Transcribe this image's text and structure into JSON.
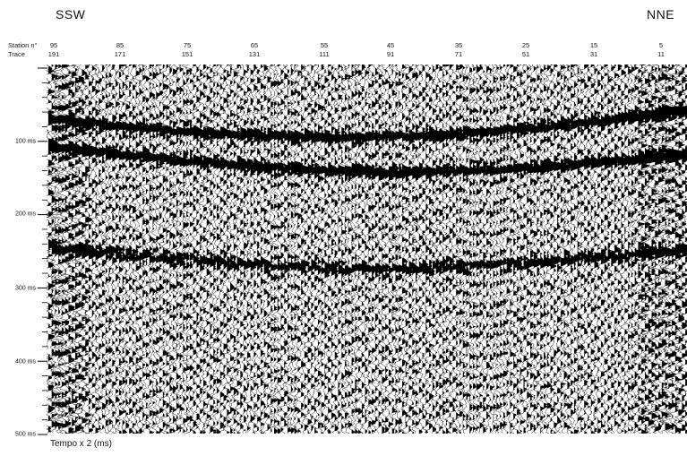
{
  "section": {
    "direction_left": "SSW",
    "direction_right": "NNE",
    "station_header": "Station n°",
    "trace_header": "Trace",
    "stations": [
      "95",
      "85",
      "75",
      "65",
      "55",
      "45",
      "35",
      "25",
      "15",
      "5"
    ],
    "traces": [
      "191",
      "171",
      "151",
      "131",
      "111",
      "91",
      "71",
      "51",
      "31",
      "11"
    ],
    "time_labels": [
      "100 ms",
      "200 ms",
      "300 ms",
      "400 ms",
      "500 ms"
    ],
    "time_axis_label": "Tempo x 2 (ms)"
  },
  "colors": {
    "wiggle": "#000000",
    "background": "#ffffff"
  }
}
